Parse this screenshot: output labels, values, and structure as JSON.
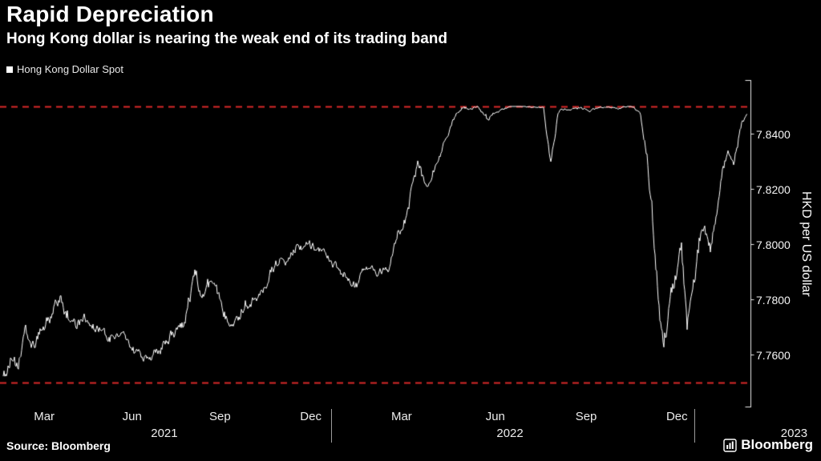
{
  "header": {
    "title": "Rapid Depreciation",
    "subtitle": "Hong Kong dollar is nearing the weak end of its trading band"
  },
  "legend": {
    "label": "Hong Kong Dollar Spot"
  },
  "footer": {
    "source": "Source: Bloomberg",
    "brand": "Bloomberg"
  },
  "colors": {
    "background": "#000000",
    "line": "#ffffff",
    "band": "#d92828",
    "axis": "#e8e8e8",
    "tick_text": "#ececec"
  },
  "chart_data": {
    "type": "line",
    "title": "Rapid Depreciation",
    "series_name": "Hong Kong Dollar Spot",
    "ylabel": "HKD per US dollar",
    "ylim": [
      7.745,
      7.8525
    ],
    "band_lines": [
      7.85,
      7.75
    ],
    "grid": false,
    "legend_position": "top-left",
    "yticks": [
      {
        "value": 7.84,
        "label": "7.8400"
      },
      {
        "value": 7.82,
        "label": "7.8200"
      },
      {
        "value": 7.8,
        "label": "7.8000"
      },
      {
        "value": 7.78,
        "label": "7.7800"
      },
      {
        "value": 7.76,
        "label": "7.7600"
      }
    ],
    "xticks": [
      {
        "label": "Mar",
        "t": 1.4
      },
      {
        "label": "Jun",
        "t": 4.4
      },
      {
        "label": "Sep",
        "t": 7.4
      },
      {
        "label": "Dec",
        "t": 10.5
      },
      {
        "label": "Mar",
        "t": 13.6
      },
      {
        "label": "Jun",
        "t": 16.8
      },
      {
        "label": "Sep",
        "t": 19.9
      },
      {
        "label": "Dec",
        "t": 23.0
      }
    ],
    "year_labels": [
      {
        "label": "2021",
        "t": 5.5
      },
      {
        "label": "2022",
        "t": 17.3
      },
      {
        "label": "2023",
        "t": 27.0
      }
    ],
    "separators_t": [
      11.2,
      23.6
    ],
    "t_unit": "months since Jan 2021",
    "t_max": 25.4,
    "anchors": [
      [
        0.0,
        7.753,
        0.0012
      ],
      [
        0.25,
        7.757,
        0.0018
      ],
      [
        0.5,
        7.754,
        0.0018
      ],
      [
        0.75,
        7.769,
        0.0022
      ],
      [
        0.95,
        7.763,
        0.0018
      ],
      [
        1.3,
        7.768,
        0.0022
      ],
      [
        1.7,
        7.776,
        0.0022
      ],
      [
        1.95,
        7.7795,
        0.002
      ],
      [
        2.2,
        7.7745,
        0.0018
      ],
      [
        2.5,
        7.7715,
        0.0018
      ],
      [
        2.8,
        7.7745,
        0.0015
      ],
      [
        3.2,
        7.769,
        0.0015
      ],
      [
        3.6,
        7.7655,
        0.0014
      ],
      [
        4.0,
        7.7675,
        0.0014
      ],
      [
        4.4,
        7.7625,
        0.0013
      ],
      [
        4.9,
        7.7585,
        0.0011
      ],
      [
        5.3,
        7.7615,
        0.0013
      ],
      [
        5.8,
        7.7665,
        0.0016
      ],
      [
        6.2,
        7.7745,
        0.0018
      ],
      [
        6.55,
        7.7905,
        0.0018
      ],
      [
        6.8,
        7.78,
        0.0018
      ],
      [
        7.1,
        7.786,
        0.0016
      ],
      [
        7.5,
        7.776,
        0.0016
      ],
      [
        7.85,
        7.7725,
        0.0014
      ],
      [
        8.3,
        7.7785,
        0.0014
      ],
      [
        8.7,
        7.783,
        0.0014
      ],
      [
        9.2,
        7.7905,
        0.0016
      ],
      [
        9.6,
        7.796,
        0.0015
      ],
      [
        10.0,
        7.7995,
        0.0013
      ],
      [
        10.4,
        7.801,
        0.0012
      ],
      [
        10.8,
        7.7985,
        0.0012
      ],
      [
        11.2,
        7.7945,
        0.0012
      ],
      [
        11.6,
        7.7875,
        0.0012
      ],
      [
        12.0,
        7.7855,
        0.0012
      ],
      [
        12.4,
        7.7905,
        0.0012
      ],
      [
        12.8,
        7.7885,
        0.0012
      ],
      [
        13.2,
        7.7925,
        0.0013
      ],
      [
        13.6,
        7.806,
        0.0016
      ],
      [
        13.9,
        7.8185,
        0.0016
      ],
      [
        14.15,
        7.83,
        0.0013
      ],
      [
        14.45,
        7.819,
        0.0016
      ],
      [
        14.75,
        7.829,
        0.0013
      ],
      [
        15.05,
        7.839,
        0.001
      ],
      [
        15.35,
        7.8455,
        0.0007
      ],
      [
        15.7,
        7.8492,
        0.0004
      ],
      [
        16.2,
        7.8497,
        0.0003
      ],
      [
        16.55,
        7.8445,
        0.0008
      ],
      [
        16.85,
        7.8482,
        0.0004
      ],
      [
        17.3,
        7.8497,
        0.0002
      ],
      [
        18.0,
        7.8498,
        0.0002
      ],
      [
        18.45,
        7.8497,
        0.0003
      ],
      [
        18.7,
        7.829,
        0.0012
      ],
      [
        18.95,
        7.848,
        0.0005
      ],
      [
        19.5,
        7.8498,
        0.0002
      ],
      [
        19.95,
        7.8488,
        0.0004
      ],
      [
        20.5,
        7.8498,
        0.0002
      ],
      [
        21.0,
        7.8494,
        0.0003
      ],
      [
        21.5,
        7.8498,
        0.0002
      ],
      [
        21.75,
        7.8478,
        0.0005
      ],
      [
        21.95,
        7.831,
        0.0018
      ],
      [
        22.15,
        7.814,
        0.0026
      ],
      [
        22.35,
        7.784,
        0.0028
      ],
      [
        22.55,
        7.765,
        0.0024
      ],
      [
        22.75,
        7.776,
        0.0028
      ],
      [
        22.95,
        7.789,
        0.0026
      ],
      [
        23.15,
        7.7975,
        0.0024
      ],
      [
        23.35,
        7.769,
        0.0024
      ],
      [
        23.55,
        7.7825,
        0.0024
      ],
      [
        23.75,
        7.8,
        0.002
      ],
      [
        23.95,
        7.8075,
        0.0018
      ],
      [
        24.15,
        7.7985,
        0.0018
      ],
      [
        24.35,
        7.812,
        0.0016
      ],
      [
        24.55,
        7.825,
        0.0014
      ],
      [
        24.75,
        7.8345,
        0.0012
      ],
      [
        24.95,
        7.829,
        0.0013
      ],
      [
        25.15,
        7.8405,
        0.001
      ],
      [
        25.4,
        7.8465,
        0.0008
      ]
    ]
  }
}
